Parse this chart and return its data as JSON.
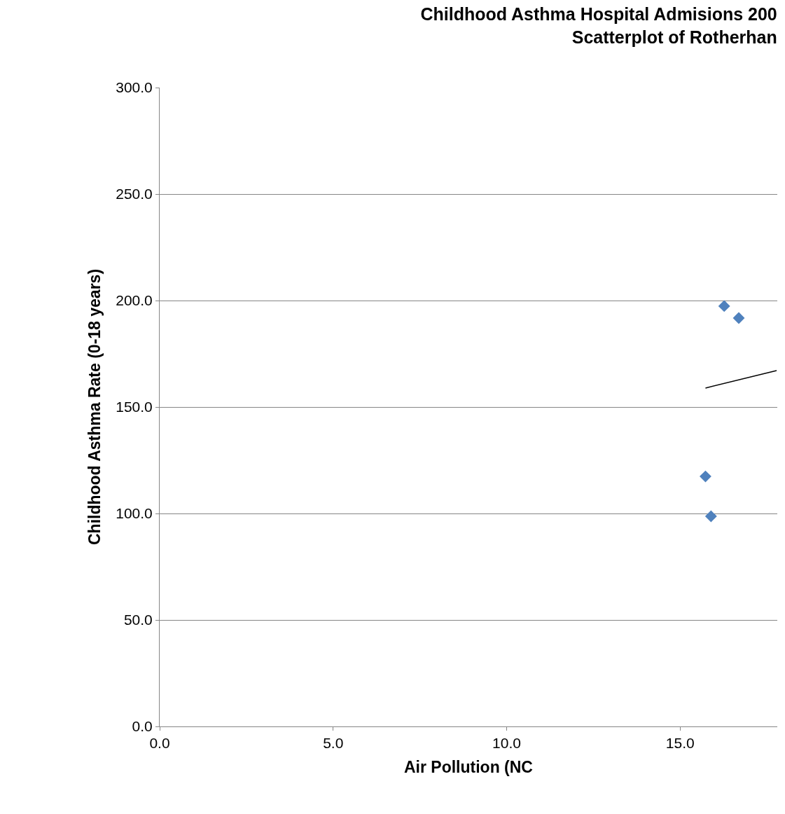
{
  "chart_data": {
    "type": "scatter",
    "title": "Childhood Asthma Hospital Admisions 200\nScatterplot of Rotherhan",
    "xlabel": "Air Pollution (NC",
    "ylabel": "Childhood Asthma Rate (0-18 years)",
    "series": [
      {
        "color": "#4f81bd",
        "marker": "diamond",
        "x": [
          16.27,
          16.69,
          15.73,
          15.89
        ],
        "values": [
          197.4,
          191.8,
          117.4,
          98.7
        ]
      },
      {
        "type": "line",
        "color": "#000000",
        "line_style": "solid",
        "x": [
          15.73,
          17.78
        ],
        "values": [
          158.9,
          167.1
        ]
      }
    ],
    "xlim": [
      0,
      17.8
    ],
    "ylim": [
      0,
      300
    ],
    "xticks": [
      {
        "value": 0,
        "label": "0.0"
      },
      {
        "value": 5,
        "label": "5.0"
      },
      {
        "value": 10,
        "label": "10.0"
      },
      {
        "value": 15,
        "label": "15.0"
      }
    ],
    "yticks": [
      {
        "value": 0,
        "label": "0.0"
      },
      {
        "value": 50,
        "label": "50.0"
      },
      {
        "value": 100,
        "label": "100.0"
      },
      {
        "value": 150,
        "label": "150.0"
      },
      {
        "value": 200,
        "label": "200.0"
      },
      {
        "value": 250,
        "label": "250.0"
      },
      {
        "value": 300,
        "label": "300.0"
      }
    ],
    "grid": "y",
    "legend": false
  }
}
